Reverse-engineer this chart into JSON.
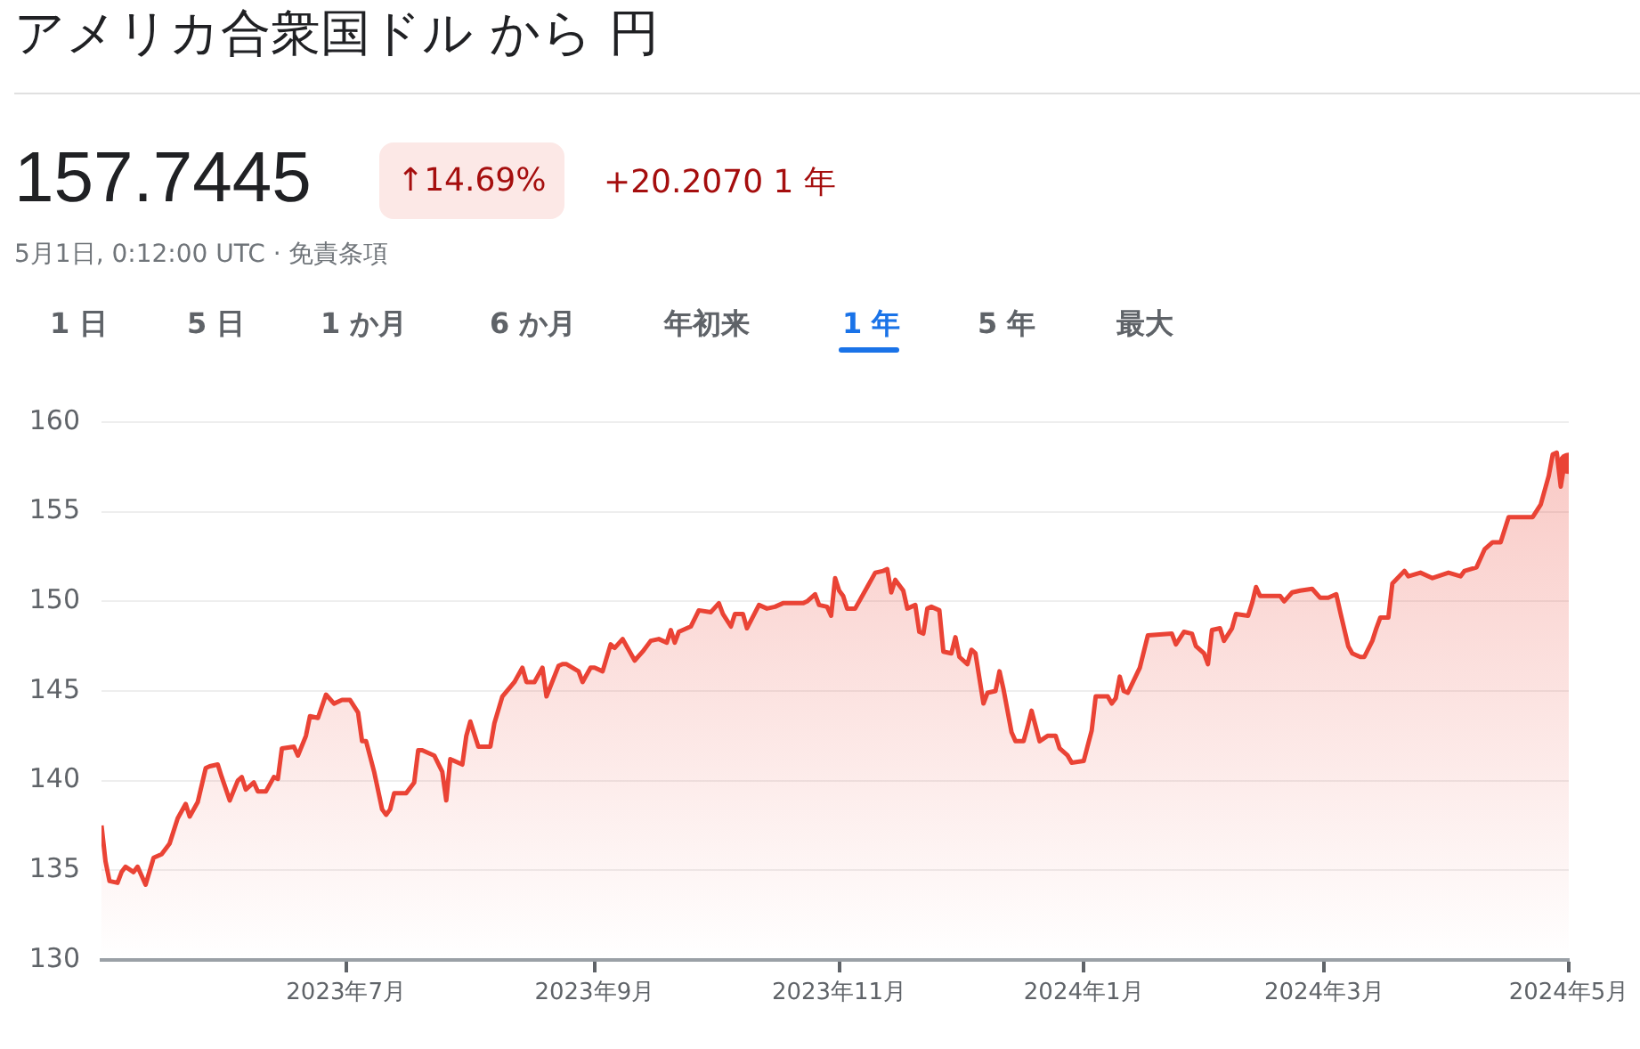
{
  "chart_data": {
    "type": "area",
    "title": "アメリカ合衆国ドル から 円",
    "annotations": [
      "157.7445",
      "↑14.69%",
      "+20.2070 1 年",
      "5月1日, 0:12:00 UTC · 免責条項",
      "1 日",
      "5 日",
      "1 か月",
      "6 か月",
      "年初来",
      "1 年",
      "5 年",
      "最大"
    ],
    "color": "#ea4335",
    "x": [
      "2023-05-01",
      "2023-05-02",
      "2023-05-03",
      "2023-05-05",
      "2023-05-06",
      "2023-05-07",
      "2023-05-09",
      "2023-05-10",
      "2023-05-12",
      "2023-05-14",
      "2023-05-16",
      "2023-05-18",
      "2023-05-20",
      "2023-05-22",
      "2023-05-23",
      "2023-05-25",
      "2023-05-27",
      "2023-05-28",
      "2023-05-30",
      "2023-05-31",
      "2023-06-02",
      "2023-06-04",
      "2023-06-05",
      "2023-06-06",
      "2023-06-08",
      "2023-06-09",
      "2023-06-11",
      "2023-06-13",
      "2023-06-14",
      "2023-06-15",
      "2023-06-18",
      "2023-06-19",
      "2023-06-21",
      "2023-06-22",
      "2023-06-24",
      "2023-06-26",
      "2023-06-28",
      "2023-06-30",
      "2023-07-02",
      "2023-07-04",
      "2023-07-05",
      "2023-07-06",
      "2023-07-08",
      "2023-07-10",
      "2023-07-11",
      "2023-07-12",
      "2023-07-13",
      "2023-07-16",
      "2023-07-18",
      "2023-07-19",
      "2023-07-20",
      "2023-07-23",
      "2023-07-25",
      "2023-07-26",
      "2023-07-27",
      "2023-07-30",
      "2023-07-31",
      "2023-08-01",
      "2023-08-03",
      "2023-08-06",
      "2023-08-07",
      "2023-08-09",
      "2023-08-12",
      "2023-08-14",
      "2023-08-15",
      "2023-08-17",
      "2023-08-19",
      "2023-08-20",
      "2023-08-23",
      "2023-08-24",
      "2023-08-25",
      "2023-08-28",
      "2023-08-29",
      "2023-08-31",
      "2023-09-01",
      "2023-09-03",
      "2023-09-05",
      "2023-09-06",
      "2023-09-08",
      "2023-09-09",
      "2023-09-11",
      "2023-09-13",
      "2023-09-15",
      "2023-09-17",
      "2023-09-19",
      "2023-09-20",
      "2023-09-21",
      "2023-09-22",
      "2023-09-25",
      "2023-09-27",
      "2023-09-30",
      "2023-10-02",
      "2023-10-03",
      "2023-10-05",
      "2023-10-06",
      "2023-10-08",
      "2023-10-09",
      "2023-10-12",
      "2023-10-14",
      "2023-10-16",
      "2023-10-18",
      "2023-10-20",
      "2023-10-23",
      "2023-10-24",
      "2023-10-26",
      "2023-10-27",
      "2023-10-29",
      "2023-10-30",
      "2023-10-31",
      "2023-11-01",
      "2023-11-02",
      "2023-11-03",
      "2023-11-05",
      "2023-11-08",
      "2023-11-10",
      "2023-11-12",
      "2023-11-13",
      "2023-11-14",
      "2023-11-15",
      "2023-11-17",
      "2023-11-18",
      "2023-11-20",
      "2023-11-21",
      "2023-11-22",
      "2023-11-23",
      "2023-11-24",
      "2023-11-26",
      "2023-11-27",
      "2023-11-29",
      "2023-11-30",
      "2023-12-01",
      "2023-12-03",
      "2023-12-04",
      "2023-12-05",
      "2023-12-07",
      "2023-12-08",
      "2023-12-10",
      "2023-12-11",
      "2023-12-12",
      "2023-12-14",
      "2023-12-15",
      "2023-12-17",
      "2023-12-18",
      "2023-12-19",
      "2023-12-21",
      "2023-12-23",
      "2023-12-25",
      "2023-12-26",
      "2023-12-28",
      "2023-12-29",
      "2024-01-01",
      "2024-01-03",
      "2024-01-04",
      "2024-01-07",
      "2024-01-08",
      "2024-01-09",
      "2024-01-10",
      "2024-01-11",
      "2024-01-12",
      "2024-01-15",
      "2024-01-17",
      "2024-01-23",
      "2024-01-24",
      "2024-01-26",
      "2024-01-28",
      "2024-01-29",
      "2024-01-31",
      "2024-02-01",
      "2024-02-02",
      "2024-02-04",
      "2024-02-05",
      "2024-02-07",
      "2024-02-08",
      "2024-02-11",
      "2024-02-12",
      "2024-02-13",
      "2024-02-14",
      "2024-02-17",
      "2024-02-19",
      "2024-02-20",
      "2024-02-22",
      "2024-02-24",
      "2024-02-27",
      "2024-02-29",
      "2024-03-02",
      "2024-03-04",
      "2024-03-05",
      "2024-03-07",
      "2024-03-08",
      "2024-03-10",
      "2024-03-11",
      "2024-03-13",
      "2024-03-14",
      "2024-03-15",
      "2024-03-17",
      "2024-03-18",
      "2024-03-21",
      "2024-03-22",
      "2024-03-25",
      "2024-03-28",
      "2024-04-01",
      "2024-04-04",
      "2024-04-05",
      "2024-04-08",
      "2024-04-10",
      "2024-04-12",
      "2024-04-14",
      "2024-04-16",
      "2024-04-19",
      "2024-04-22",
      "2024-04-24",
      "2024-04-26",
      "2024-04-27",
      "2024-04-28",
      "2024-04-29",
      "2024-04-30",
      "2024-05-01"
    ],
    "values": [
      137.5,
      135.5,
      134.4,
      134.3,
      134.9,
      135.2,
      134.9,
      135.2,
      134.2,
      135.7,
      135.9,
      136.5,
      137.9,
      138.7,
      138.0,
      138.8,
      140.7,
      140.8,
      140.9,
      140.2,
      138.9,
      140.0,
      140.2,
      139.5,
      139.9,
      139.4,
      139.4,
      140.2,
      140.1,
      141.8,
      141.9,
      141.4,
      142.5,
      143.6,
      143.5,
      144.8,
      144.3,
      144.5,
      144.5,
      143.8,
      142.2,
      142.2,
      140.5,
      138.4,
      138.1,
      138.4,
      139.3,
      139.3,
      139.9,
      141.7,
      141.7,
      141.4,
      140.5,
      138.9,
      141.2,
      140.9,
      142.5,
      143.3,
      141.9,
      141.9,
      143.2,
      144.7,
      145.5,
      146.3,
      145.5,
      145.5,
      146.3,
      144.7,
      146.4,
      146.5,
      146.5,
      146.1,
      145.5,
      146.3,
      146.3,
      146.1,
      147.6,
      147.4,
      147.9,
      147.5,
      146.7,
      147.2,
      147.8,
      147.9,
      147.7,
      148.4,
      147.7,
      148.3,
      148.6,
      149.5,
      149.4,
      149.9,
      149.3,
      148.6,
      149.3,
      149.3,
      148.5,
      149.8,
      149.6,
      149.7,
      149.9,
      149.9,
      149.9,
      150.0,
      150.4,
      149.8,
      149.7,
      149.2,
      151.3,
      150.6,
      150.3,
      149.6,
      149.6,
      150.8,
      151.6,
      151.7,
      151.8,
      150.5,
      151.2,
      150.6,
      149.6,
      149.8,
      148.3,
      148.2,
      149.6,
      149.7,
      149.5,
      147.2,
      147.1,
      148.0,
      146.9,
      146.5,
      147.3,
      147.1,
      144.3,
      144.9,
      145.0,
      146.1,
      145.1,
      142.7,
      142.2,
      142.2,
      143.0,
      143.9,
      142.2,
      142.5,
      142.5,
      141.8,
      141.4,
      141.0,
      141.1,
      142.8,
      144.7,
      144.7,
      144.3,
      144.6,
      145.8,
      145.0,
      144.9,
      146.3,
      148.1,
      148.2,
      147.6,
      148.3,
      148.2,
      147.5,
      147.1,
      146.5,
      148.4,
      148.5,
      147.8,
      148.5,
      149.3,
      149.2,
      149.9,
      150.8,
      150.3,
      150.3,
      150.3,
      150.0,
      150.5,
      150.6,
      150.7,
      150.2,
      150.2,
      150.4,
      149.4,
      147.5,
      147.1,
      146.9,
      146.9,
      147.8,
      148.5,
      149.1,
      149.1,
      151.0,
      151.7,
      151.4,
      151.6,
      151.3,
      151.6,
      151.4,
      151.7,
      151.9,
      152.9,
      153.3,
      153.3,
      154.7,
      154.7,
      154.7,
      155.4,
      157.0,
      158.2,
      158.3,
      156.4,
      157.8,
      157.7
    ],
    "xlim": [
      "2023-05-01",
      "2024-05-01"
    ],
    "xticks": [
      {
        "value": "2023-07-01",
        "label": "2023年7月"
      },
      {
        "value": "2023-09-01",
        "label": "2023年9月"
      },
      {
        "value": "2023-11-01",
        "label": "2023年11月"
      },
      {
        "value": "2024-01-01",
        "label": "2024年1月"
      },
      {
        "value": "2024-03-01",
        "label": "2024年3月"
      },
      {
        "value": "2024-05-01",
        "label": "2024年5月"
      }
    ],
    "ylim": [
      130,
      160
    ],
    "yticks": [
      130,
      135,
      140,
      145,
      150,
      155,
      160
    ],
    "grid": "y",
    "legend": false,
    "marker": "none",
    "line_style": "solid"
  }
}
